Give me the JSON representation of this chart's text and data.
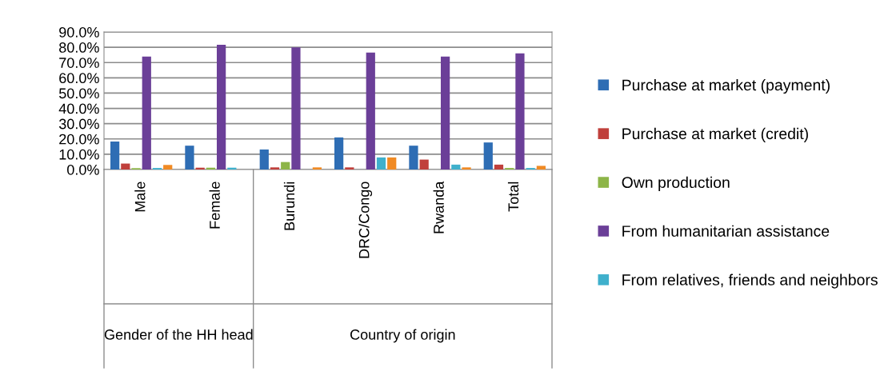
{
  "chart_data": {
    "type": "bar",
    "categories": [
      "Male",
      "Female",
      "Burundi",
      "DRC/Congo",
      "Rwanda",
      "Total"
    ],
    "series": [
      {
        "name": "Purchase at market (payment)",
        "color": "#2e6db4",
        "values": [
          18.3,
          15.6,
          13.1,
          21.0,
          15.6,
          17.7
        ]
      },
      {
        "name": "Purchase at market (credit)",
        "color": "#c0403c",
        "values": [
          3.9,
          1.2,
          1.4,
          1.4,
          6.5,
          3.2
        ]
      },
      {
        "name": "Own production",
        "color": "#8db548",
        "values": [
          0.9,
          1.2,
          4.9,
          0,
          0,
          1.0
        ]
      },
      {
        "name": "From humanitarian assistance",
        "color": "#6b3f98",
        "values": [
          73.9,
          81.6,
          79.9,
          76.5,
          73.9,
          76.0
        ]
      },
      {
        "name": "From relatives, friends and neighbors",
        "color": "#3fb0cc",
        "values": [
          1.0,
          1.2,
          0,
          7.9,
          3.2,
          1.0
        ]
      },
      {
        "color": "#f08a24",
        "values": [
          3.0,
          0,
          1.4,
          7.9,
          1.4,
          2.4
        ]
      }
    ],
    "ylim": [
      0,
      90
    ],
    "yticks": [
      {
        "value": 0,
        "label": "0.0%"
      },
      {
        "value": 10,
        "label": "10.0%"
      },
      {
        "value": 20,
        "label": "20.0%"
      },
      {
        "value": 30,
        "label": "30.0%"
      },
      {
        "value": 40,
        "label": "40.0%"
      },
      {
        "value": 50,
        "label": "50.0%"
      },
      {
        "value": 60,
        "label": "60.0%"
      },
      {
        "value": 70,
        "label": "70.0%"
      },
      {
        "value": 80,
        "label": "80.0%"
      },
      {
        "value": 90,
        "label": "90.0%"
      }
    ],
    "grid": "y",
    "legend": "right",
    "annotations": [
      "Gender of the HH head",
      "Country of origin"
    ]
  }
}
